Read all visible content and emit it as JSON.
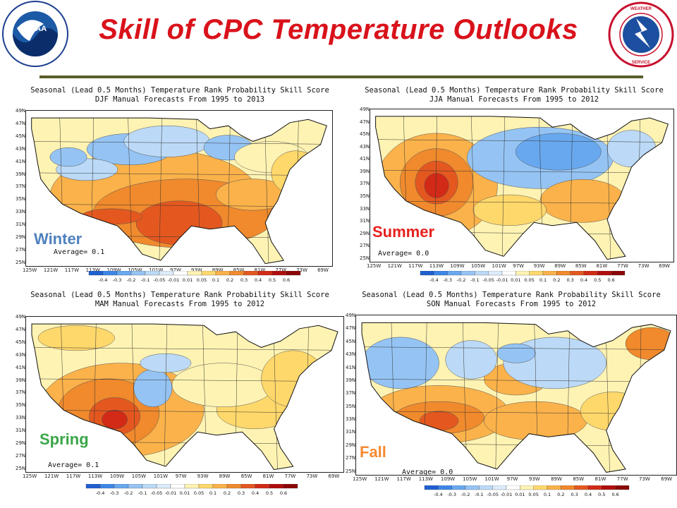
{
  "title": "Skill of CPC Temperature Outlooks",
  "logos": {
    "noaa_text": "NOAA",
    "noaa_ring_text": "NATIONAL OCEANIC AND ATMOSPHERIC ADMINISTRATION · U.S. DEPARTMENT OF COMMERCE",
    "nws_ring_text": "NATIONAL WEATHER SERVICE"
  },
  "colors": {
    "title": "#d9121b",
    "rule": "#5a5d2a",
    "winter": "#4f81bd",
    "summer": "#e8201d",
    "spring": "#3aa647",
    "fall": "#f58a32"
  },
  "panels": [
    {
      "id": "winter",
      "title_line1": "Seasonal (Lead 0.5 Months) Temperature Rank Probability Skill Score",
      "title_line2": "DJF Manual Forecasts From 1995 to 2013",
      "season_label": "Winter",
      "average": "Average= 0.1"
    },
    {
      "id": "summer",
      "title_line1": "Seasonal (Lead 0.5 Months) Temperature Rank Probability Skill Score",
      "title_line2": "JJA Manual Forecasts From 1995 to 2012",
      "season_label": "Summer",
      "average": "Average= 0.0"
    },
    {
      "id": "spring",
      "title_line1": "Seasonal (Lead 0.5 Months) Temperature Rank Probability Skill Score",
      "title_line2": "MAM Manual Forecasts From 1995 to 2012",
      "season_label": "Spring",
      "average": "Average= 0.1"
    },
    {
      "id": "fall",
      "title_line1": "Seasonal (Lead 0.5 Months) Temperature Rank Probability Skill Score",
      "title_line2": "SON Manual Forecasts From 1995 to 2012",
      "season_label": "Fall",
      "average": "Average= 0.0"
    }
  ],
  "latitudes": [
    "49N",
    "47N",
    "45N",
    "43N",
    "41N",
    "39N",
    "37N",
    "35N",
    "33N",
    "31N",
    "29N",
    "27N",
    "25N"
  ],
  "longitudes": [
    "125W",
    "121W",
    "117W",
    "113W",
    "109W",
    "105W",
    "101W",
    "97W",
    "93W",
    "89W",
    "85W",
    "81W",
    "77W",
    "73W",
    "69W"
  ],
  "colorbar": {
    "labels": [
      "-0.4",
      "-0.3",
      "-0.2",
      "-0.1",
      "-0.05",
      "-0.01",
      "0.01",
      "0.05",
      "0.1",
      "0.2",
      "0.3",
      "0.4",
      "0.5",
      "0.6"
    ],
    "colors": [
      "#1f5fd1",
      "#3d86e8",
      "#68a8ef",
      "#95c4f4",
      "#bcdaf7",
      "#dcecfb",
      "#ffffff",
      "#fff3b3",
      "#ffd86b",
      "#fbb24a",
      "#f08a2c",
      "#e4581f",
      "#d22a16",
      "#b10d0d",
      "#8c0606"
    ]
  }
}
